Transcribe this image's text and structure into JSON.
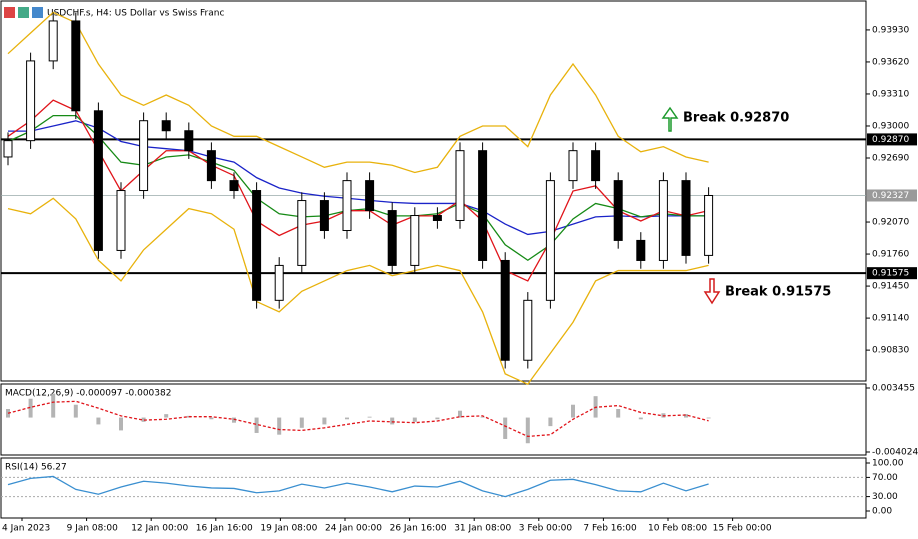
{
  "chart_data": [
    {
      "type": "candlestick",
      "title": "USDCHF.s, H4:  US Dollar vs Swiss Franc",
      "ylim": [
        0.90531,
        0.9421
      ],
      "yticks": [
        {
          "value": 0.9393,
          "label": "0.93930"
        },
        {
          "value": 0.9362,
          "label": "0.93620"
        },
        {
          "value": 0.9331,
          "label": "0.93310"
        },
        {
          "value": 0.93,
          "label": "0.93000"
        },
        {
          "value": 0.9269,
          "label": "0.92690"
        },
        {
          "value": 0.9207,
          "label": "0.92070"
        },
        {
          "value": 0.9176,
          "label": "0.91760"
        },
        {
          "value": 0.9145,
          "label": "0.91450"
        },
        {
          "value": 0.9114,
          "label": "0.91140"
        },
        {
          "value": 0.9083,
          "label": "0.90830"
        }
      ],
      "candles": {
        "up_color": "#000000",
        "down_color": "#000000",
        "open": [
          0.927,
          0.92858,
          0.9363,
          0.94017,
          0.93147,
          0.91795,
          0.92375,
          0.93051,
          0.92954,
          0.92761,
          0.92471,
          0.92375,
          0.91312,
          0.9165,
          0.92278,
          0.91988,
          0.92471,
          0.92181,
          0.9165,
          0.92133,
          0.92085,
          0.92761,
          0.91698,
          0.90732,
          0.91312,
          0.92471,
          0.92761,
          0.92471,
          0.91892,
          0.91698,
          0.92471,
          0.91747
        ],
        "high": [
          0.92938,
          0.9371,
          0.94097,
          0.94097,
          0.93227,
          0.92455,
          0.93131,
          0.93131,
          0.93034,
          0.92841,
          0.92551,
          0.92455,
          0.9173,
          0.92358,
          0.92358,
          0.92551,
          0.92551,
          0.92261,
          0.92213,
          0.92213,
          0.92841,
          0.92841,
          0.91778,
          0.91392,
          0.92551,
          0.92841,
          0.92841,
          0.92551,
          0.91972,
          0.92551,
          0.92551,
          0.92407
        ],
        "low": [
          0.9262,
          0.92778,
          0.9355,
          0.93067,
          0.91715,
          0.91715,
          0.92295,
          0.92874,
          0.92681,
          0.92391,
          0.92295,
          0.91232,
          0.91232,
          0.9157,
          0.91908,
          0.91908,
          0.92101,
          0.9157,
          0.9157,
          0.92005,
          0.92005,
          0.91618,
          0.90652,
          0.90652,
          0.91232,
          0.92391,
          0.92391,
          0.91812,
          0.91618,
          0.91618,
          0.91667,
          0.91667
        ],
        "close": [
          0.92858,
          0.9363,
          0.94017,
          0.93147,
          0.91795,
          0.92375,
          0.93051,
          0.92954,
          0.92761,
          0.92471,
          0.92375,
          0.91312,
          0.9165,
          0.92278,
          0.91988,
          0.92471,
          0.92181,
          0.9165,
          0.92133,
          0.92085,
          0.92761,
          0.91698,
          0.90732,
          0.91312,
          0.92471,
          0.92761,
          0.92471,
          0.91892,
          0.91698,
          0.92471,
          0.91747,
          0.92327
        ]
      },
      "series": [
        {
          "color": "#e8b20c",
          "values": [
            0.937,
            0.939,
            0.941,
            0.94,
            0.936,
            0.933,
            0.932,
            0.933,
            0.932,
            0.93,
            0.929,
            0.929,
            0.928,
            0.927,
            0.926,
            0.9265,
            0.9265,
            0.9262,
            0.9255,
            0.926,
            0.929,
            0.93,
            0.93,
            0.928,
            0.933,
            0.936,
            0.933,
            0.929,
            0.9275,
            0.928,
            0.927,
            0.9265
          ]
        },
        {
          "color": "#e8b20c",
          "values": [
            0.922,
            0.9215,
            0.923,
            0.921,
            0.917,
            0.915,
            0.918,
            0.92,
            0.922,
            0.9215,
            0.92,
            0.913,
            0.912,
            0.914,
            0.915,
            0.916,
            0.9165,
            0.9155,
            0.916,
            0.9165,
            0.916,
            0.912,
            0.906,
            0.905,
            0.908,
            0.911,
            0.915,
            0.916,
            0.916,
            0.916,
            0.916,
            0.9165
          ]
        },
        {
          "color": "#1a23c8",
          "values": [
            0.9295,
            0.9295,
            0.93,
            0.9305,
            0.9298,
            0.9285,
            0.928,
            0.9278,
            0.9276,
            0.927,
            0.9265,
            0.925,
            0.924,
            0.9235,
            0.9232,
            0.923,
            0.9228,
            0.9226,
            0.9225,
            0.9225,
            0.9225,
            0.9218,
            0.9205,
            0.9195,
            0.9198,
            0.9205,
            0.9212,
            0.9213,
            0.9212,
            0.9213,
            0.9213,
            0.9213
          ]
        },
        {
          "color": "#168a16",
          "values": [
            0.9285,
            0.9295,
            0.931,
            0.931,
            0.929,
            0.9265,
            0.9262,
            0.927,
            0.9272,
            0.9265,
            0.9257,
            0.923,
            0.9215,
            0.9212,
            0.9213,
            0.9218,
            0.922,
            0.9213,
            0.9213,
            0.9215,
            0.9225,
            0.9215,
            0.9185,
            0.917,
            0.9185,
            0.921,
            0.9225,
            0.922,
            0.9212,
            0.9215,
            0.9213,
            0.9213
          ]
        },
        {
          "color": "#e0141a",
          "values": [
            0.929,
            0.9305,
            0.9325,
            0.9315,
            0.9276,
            0.9237,
            0.9257,
            0.9276,
            0.9276,
            0.9262,
            0.9252,
            0.9208,
            0.9194,
            0.9204,
            0.9208,
            0.9218,
            0.9218,
            0.9204,
            0.9213,
            0.9213,
            0.9228,
            0.9208,
            0.916,
            0.915,
            0.9189,
            0.9237,
            0.9242,
            0.9218,
            0.9208,
            0.9218,
            0.9213,
            0.9218
          ]
        }
      ],
      "levels": [
        {
          "value": 0.9287,
          "label": "0.92870"
        },
        {
          "value": 0.91575,
          "label": "0.91575"
        }
      ],
      "current": {
        "value": 0.92327,
        "label": "0.92327"
      },
      "annotations": [
        "Break 0.92870",
        "Break 0.91575"
      ]
    },
    {
      "type": "macd",
      "title": "MACD(12,26,9) -0.000097 -0.000382",
      "ylim": [
        -0.004024,
        0.003455
      ],
      "yticks": [
        0.003455,
        -0.004024
      ],
      "histogram": {
        "color": "#b4b4b4",
        "values": [
          0.001,
          0.0022,
          0.0028,
          0.0015,
          -0.0008,
          -0.0015,
          -0.0005,
          0.0004,
          0.0002,
          -0.0002,
          -0.0006,
          -0.0018,
          -0.002,
          -0.0012,
          -0.0008,
          -0.0002,
          0.0001,
          -0.0008,
          -0.0005,
          -0.0002,
          0.0008,
          0.0001,
          -0.0025,
          -0.003,
          -0.001,
          0.0015,
          0.0025,
          0.001,
          -0.0002,
          0.0005,
          0.0004,
          -9.7e-05
        ]
      },
      "signal": {
        "color": "#e0141a",
        "values": [
          0.0005,
          0.0012,
          0.0018,
          0.0019,
          0.0011,
          0.0002,
          -0.0003,
          -0.0002,
          0.0001,
          0.0001,
          -0.0002,
          -0.0008,
          -0.0014,
          -0.0015,
          -0.0012,
          -0.0008,
          -0.0004,
          -0.0005,
          -0.0006,
          -0.0004,
          0.0001,
          0.0002,
          -0.001,
          -0.0022,
          -0.002,
          -0.0002,
          0.0012,
          0.0014,
          0.0006,
          0.0002,
          0.0003,
          -0.000382
        ]
      }
    },
    {
      "type": "line",
      "title": "RSI(14) 56.27",
      "ylim": [
        0,
        100
      ],
      "yticks": [
        {
          "value": 100,
          "label": "100.00"
        },
        {
          "value": 70,
          "label": "70.00"
        },
        {
          "value": 30,
          "label": "30.00"
        },
        {
          "value": 0,
          "label": "0.00"
        }
      ],
      "levels": [
        70,
        30
      ],
      "series": [
        {
          "color": "#3a8fd0",
          "values": [
            55,
            68,
            72,
            45,
            35,
            50,
            62,
            58,
            52,
            48,
            47,
            38,
            42,
            56,
            48,
            58,
            50,
            40,
            52,
            50,
            62,
            42,
            30,
            45,
            64,
            66,
            55,
            42,
            40,
            58,
            42,
            56.27
          ]
        }
      ],
      "time_labels": [
        "4 Jan 2023",
        "9 Jan 08:00",
        "12 Jan 00:00",
        "16 Jan 16:00",
        "19 Jan 08:00",
        "24 Jan 00:00",
        "26 Jan 16:00",
        "31 Jan 08:00",
        "3 Feb 00:00",
        "7 Feb 16:00",
        "10 Feb 08:00",
        "15 Feb 00:00"
      ]
    }
  ]
}
